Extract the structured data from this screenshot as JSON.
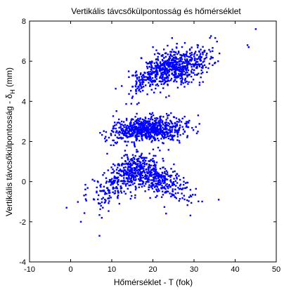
{
  "chart_data": {
    "type": "scatter",
    "title": "Vertikális távcsőkülpontosság és hőmérséklet",
    "xlabel": "Hőmérséklet - T (fok)",
    "ylabel": "Vertikális távcsőkülpontosság - δ",
    "ylabel_subscript": "H",
    "ylabel_unit": " (mm)",
    "xlim": [
      -10,
      50
    ],
    "ylim": [
      -4,
      8
    ],
    "xticks": [
      -10,
      0,
      10,
      20,
      30,
      40,
      50
    ],
    "yticks": [
      -4,
      -2,
      0,
      2,
      4,
      6,
      8
    ],
    "grid": false,
    "marker_color": "#0000ff",
    "series": [
      {
        "clusters": [
          {
            "x_range": [
              -2,
              36
            ],
            "y_at_x": [
              [
                -2,
                -0.4
              ],
              [
                3,
                -0.9
              ],
              [
                8,
                -0.6
              ],
              [
                13,
                0.3
              ],
              [
                17,
                0.6
              ],
              [
                22,
                0.1
              ],
              [
                27,
                -0.4
              ],
              [
                32,
                -0.9
              ],
              [
                35,
                -0.8
              ]
            ],
            "spread": 0.45
          },
          {
            "x_range": [
              4,
              34
            ],
            "y_at_x": [
              [
                4,
                1.7
              ],
              [
                10,
                2.4
              ],
              [
                15,
                2.6
              ],
              [
                20,
                2.6
              ],
              [
                25,
                2.6
              ],
              [
                30,
                2.8
              ],
              [
                34,
                3.1
              ]
            ],
            "spread": 0.3
          },
          {
            "x_range": [
              9,
              40
            ],
            "y_at_x": [
              [
                9,
                3.8
              ],
              [
                14,
                4.6
              ],
              [
                18,
                5.2
              ],
              [
                23,
                5.6
              ],
              [
                28,
                5.8
              ],
              [
                34,
                6.1
              ],
              [
                40,
                6.3
              ]
            ],
            "spread": 0.45
          }
        ]
      }
    ],
    "outliers": [
      [
        43,
        6.8
      ],
      [
        43.3,
        6.7
      ],
      [
        45,
        7.6
      ],
      [
        7,
        -2.7
      ],
      [
        -1,
        -1.3
      ],
      [
        36,
        -0.9
      ],
      [
        2.5,
        -2.0
      ],
      [
        31,
        3.3
      ]
    ],
    "approx_point_count": 2200
  }
}
